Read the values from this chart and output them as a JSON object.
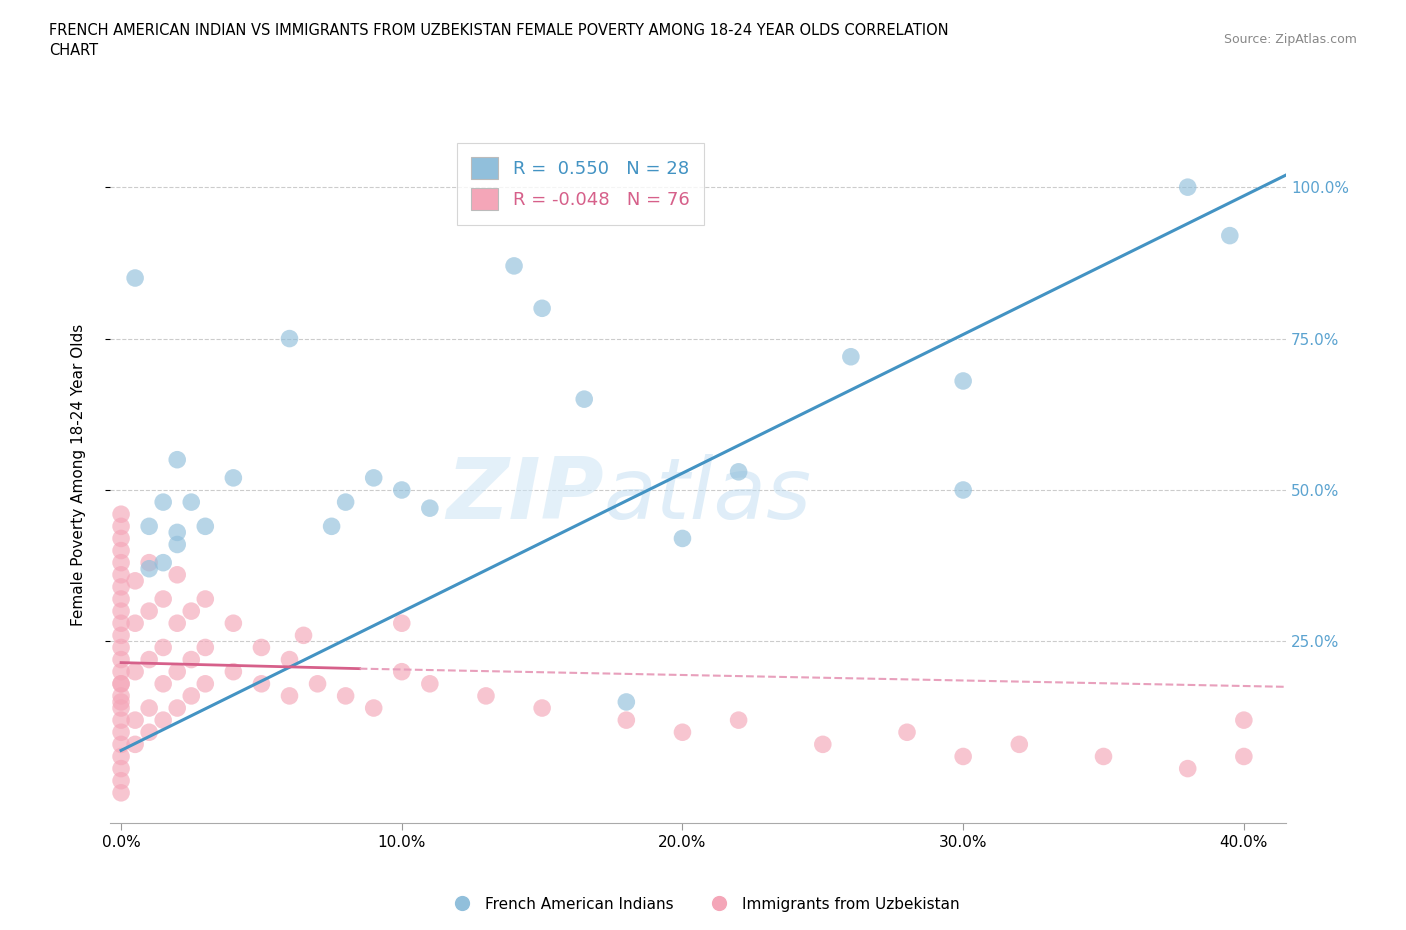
{
  "title": "FRENCH AMERICAN INDIAN VS IMMIGRANTS FROM UZBEKISTAN FEMALE POVERTY AMONG 18-24 YEAR OLDS CORRELATION\nCHART",
  "source": "Source: ZipAtlas.com",
  "ylabel": "Female Poverty Among 18-24 Year Olds",
  "watermark_zip": "ZIP",
  "watermark_atlas": "atlas",
  "blue_R": 0.55,
  "blue_N": 28,
  "pink_R": -0.048,
  "pink_N": 76,
  "blue_color": "#91bfdb",
  "pink_color": "#f4a6b8",
  "blue_line_color": "#4393c3",
  "pink_line_color": "#d6608a",
  "pink_line_dash_color": "#e8a0bc",
  "legend1": "French American Indians",
  "legend2": "Immigrants from Uzbekistan",
  "xlim": [
    -0.004,
    0.415
  ],
  "ylim": [
    -0.05,
    1.1
  ],
  "xticklabels": [
    "0.0%",
    "10.0%",
    "20.0%",
    "30.0%",
    "40.0%"
  ],
  "xtickvals": [
    0.0,
    0.1,
    0.2,
    0.3,
    0.4
  ],
  "yticklabels": [
    "25.0%",
    "50.0%",
    "75.0%",
    "100.0%"
  ],
  "ytickvals": [
    0.25,
    0.5,
    0.75,
    1.0
  ],
  "blue_line_x0": 0.0,
  "blue_line_y0": 0.07,
  "blue_line_x1": 0.415,
  "blue_line_y1": 1.02,
  "pink_line_solid_x0": 0.0,
  "pink_line_solid_y0": 0.215,
  "pink_line_solid_x1": 0.085,
  "pink_line_solid_y1": 0.205,
  "pink_line_dash_x0": 0.085,
  "pink_line_dash_y0": 0.205,
  "pink_line_dash_x1": 0.415,
  "pink_line_dash_y1": 0.175,
  "blue_x": [
    0.01,
    0.02,
    0.01,
    0.015,
    0.02,
    0.025,
    0.03,
    0.04,
    0.075,
    0.08,
    0.09,
    0.1,
    0.11,
    0.14,
    0.15,
    0.165,
    0.2,
    0.22,
    0.3,
    0.38,
    0.395,
    0.3,
    0.06,
    0.02,
    0.015,
    0.005,
    0.26,
    0.18
  ],
  "blue_y": [
    0.37,
    0.41,
    0.44,
    0.38,
    0.43,
    0.48,
    0.44,
    0.52,
    0.44,
    0.48,
    0.52,
    0.5,
    0.47,
    0.87,
    0.8,
    0.65,
    0.42,
    0.53,
    0.5,
    1.0,
    0.92,
    0.68,
    0.75,
    0.55,
    0.48,
    0.85,
    0.72,
    0.15
  ],
  "pink_x": [
    0.0,
    0.0,
    0.0,
    0.0,
    0.0,
    0.0,
    0.0,
    0.0,
    0.0,
    0.0,
    0.0,
    0.0,
    0.0,
    0.0,
    0.0,
    0.0,
    0.0,
    0.0,
    0.0,
    0.0,
    0.0,
    0.0,
    0.0,
    0.0,
    0.0,
    0.0,
    0.005,
    0.005,
    0.005,
    0.005,
    0.005,
    0.01,
    0.01,
    0.01,
    0.01,
    0.01,
    0.015,
    0.015,
    0.015,
    0.015,
    0.02,
    0.02,
    0.02,
    0.02,
    0.025,
    0.025,
    0.025,
    0.03,
    0.03,
    0.03,
    0.04,
    0.04,
    0.05,
    0.05,
    0.06,
    0.06,
    0.065,
    0.07,
    0.08,
    0.09,
    0.1,
    0.1,
    0.11,
    0.13,
    0.15,
    0.18,
    0.2,
    0.22,
    0.25,
    0.28,
    0.3,
    0.32,
    0.35,
    0.38,
    0.4,
    0.4
  ],
  "pink_y": [
    0.0,
    0.02,
    0.04,
    0.06,
    0.08,
    0.1,
    0.12,
    0.14,
    0.16,
    0.18,
    0.2,
    0.22,
    0.24,
    0.26,
    0.28,
    0.3,
    0.32,
    0.34,
    0.36,
    0.38,
    0.4,
    0.42,
    0.44,
    0.46,
    0.15,
    0.18,
    0.08,
    0.12,
    0.2,
    0.28,
    0.35,
    0.1,
    0.14,
    0.22,
    0.3,
    0.38,
    0.12,
    0.18,
    0.24,
    0.32,
    0.14,
    0.2,
    0.28,
    0.36,
    0.16,
    0.22,
    0.3,
    0.18,
    0.24,
    0.32,
    0.2,
    0.28,
    0.18,
    0.24,
    0.16,
    0.22,
    0.26,
    0.18,
    0.16,
    0.14,
    0.2,
    0.28,
    0.18,
    0.16,
    0.14,
    0.12,
    0.1,
    0.12,
    0.08,
    0.1,
    0.06,
    0.08,
    0.06,
    0.04,
    0.06,
    0.12
  ]
}
